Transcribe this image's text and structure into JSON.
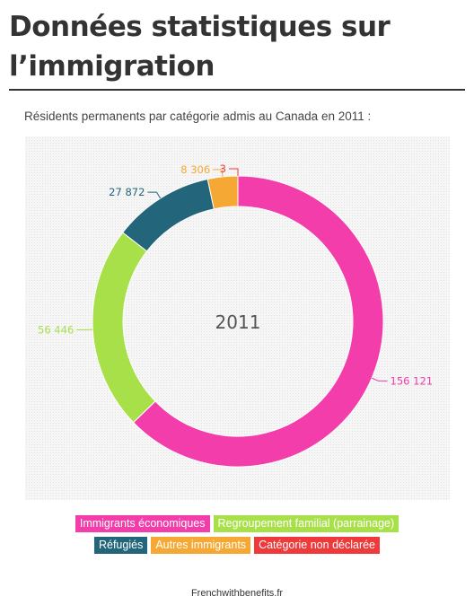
{
  "header": {
    "title_line1": "Données statistiques sur",
    "title_line2": "l’immigration"
  },
  "chart_data": {
    "type": "pie",
    "style": "donut",
    "title": "Résidents permanents par catégorie admis au Canada en 2011 :",
    "center_label": "2011",
    "categories": [
      "Immigrants économiques",
      "Regroupement familial (parrainage)",
      "Réfugiés",
      "Autres immigrants",
      "Catégorie non déclarée"
    ],
    "values": [
      156121,
      56446,
      27872,
      8306,
      3
    ],
    "value_labels": [
      "156 121",
      "56 446",
      "27 872",
      "8 306",
      "3"
    ],
    "colors": [
      "#f23dab",
      "#a8e04a",
      "#23657a",
      "#f5a934",
      "#ee3a3a"
    ],
    "legend_placement": "bottom"
  },
  "footer": {
    "source": "Frenchwithbenefits.fr"
  }
}
